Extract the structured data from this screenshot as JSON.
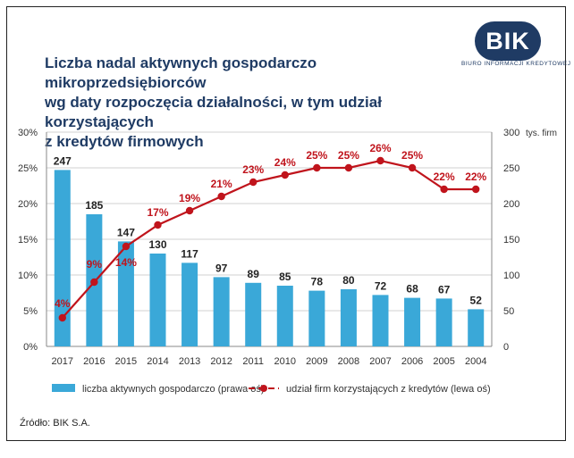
{
  "brand": {
    "logo": "BIK",
    "sub": "BIURO INFORMACJI KREDYTOWEJ"
  },
  "title_lines": [
    "Liczba nadal aktywnych gospodarczo mikroprzedsiębiorców",
    "wg daty rozpoczęcia działalności, w tym udział korzystających",
    "z kredytów firmowych"
  ],
  "source": "Źródło: BIK S.A.",
  "colors": {
    "bar": "#3aa8d8",
    "line": "#c0141c",
    "title": "#1f3b64"
  },
  "chart_data": {
    "type": "bar+line",
    "categories": [
      "2017",
      "2016",
      "2015",
      "2014",
      "2013",
      "2012",
      "2011",
      "2010",
      "2009",
      "2008",
      "2007",
      "2006",
      "2005",
      "2004"
    ],
    "series": [
      {
        "name": "liczba aktywnych gospodarczo (prawa oś)",
        "type": "bar",
        "axis": "right",
        "values": [
          247,
          185,
          147,
          130,
          117,
          97,
          89,
          85,
          78,
          80,
          72,
          68,
          67,
          52
        ]
      },
      {
        "name": "udział firm korzystających z kredytów (lewa oś)",
        "type": "line",
        "axis": "left",
        "values": [
          4,
          9,
          14,
          17,
          19,
          21,
          23,
          24,
          25,
          25,
          26,
          25,
          22,
          22
        ]
      }
    ],
    "y_left": {
      "ticks": [
        "0%",
        "5%",
        "10%",
        "15%",
        "20%",
        "25%",
        "30%"
      ],
      "range": [
        0,
        30
      ]
    },
    "y_right": {
      "ticks": [
        "0",
        "50",
        "100",
        "150",
        "200",
        "250",
        "300"
      ],
      "range": [
        0,
        300
      ],
      "unit": "tys. firm"
    },
    "legend_position": "bottom"
  }
}
